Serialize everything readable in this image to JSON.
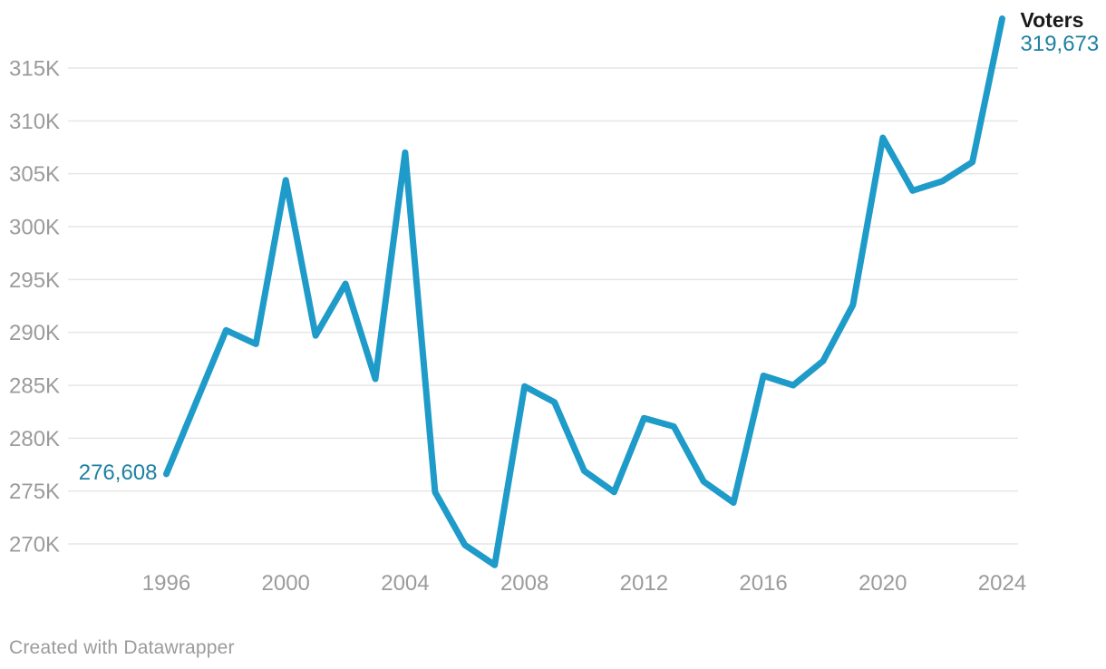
{
  "chart_data": {
    "type": "line",
    "title": "",
    "xlabel": "",
    "ylabel": "",
    "grid": "horizontal",
    "legend": "none",
    "series": [
      {
        "name": "Voters",
        "x": [
          1996,
          1997,
          1998,
          1999,
          2000,
          2001,
          2002,
          2003,
          2004,
          2005,
          2006,
          2007,
          2008,
          2009,
          2010,
          2011,
          2012,
          2013,
          2014,
          2015,
          2016,
          2017,
          2018,
          2019,
          2020,
          2021,
          2022,
          2023,
          2024
        ],
        "values": [
          276608,
          283400,
          290200,
          288900,
          304400,
          289700,
          294600,
          285600,
          307000,
          274900,
          269900,
          268000,
          284900,
          283400,
          276900,
          274900,
          281900,
          281100,
          275900,
          273900,
          285900,
          285000,
          287300,
          292600,
          308400,
          303400,
          304300,
          306100,
          319673
        ]
      }
    ],
    "x_ticks": [
      1996,
      2000,
      2004,
      2008,
      2012,
      2016,
      2020,
      2024
    ],
    "y_ticks": [
      {
        "value": 315000,
        "label": "315K"
      },
      {
        "value": 310000,
        "label": "310K"
      },
      {
        "value": 305000,
        "label": "305K"
      },
      {
        "value": 300000,
        "label": "300K"
      },
      {
        "value": 295000,
        "label": "295K"
      },
      {
        "value": 290000,
        "label": "290K"
      },
      {
        "value": 285000,
        "label": "285K"
      },
      {
        "value": 280000,
        "label": "280K"
      },
      {
        "value": 275000,
        "label": "275K"
      },
      {
        "value": 270000,
        "label": "270K"
      }
    ],
    "ylim_gridlines": [
      270000,
      315000
    ],
    "annotations": {
      "start_value_label": "276,608",
      "end_series_label": "Voters",
      "end_value_label": "319,673"
    }
  },
  "colors": {
    "line": "#1e9bc9",
    "value_label": "#1d81a2",
    "series_label": "#1a1a1a",
    "axis_text": "#9b9b9b",
    "gridline": "#e6e6e6",
    "background": "#ffffff",
    "footer_text": "#9b9b9b"
  },
  "footer": {
    "text": "Created with Datawrapper"
  }
}
